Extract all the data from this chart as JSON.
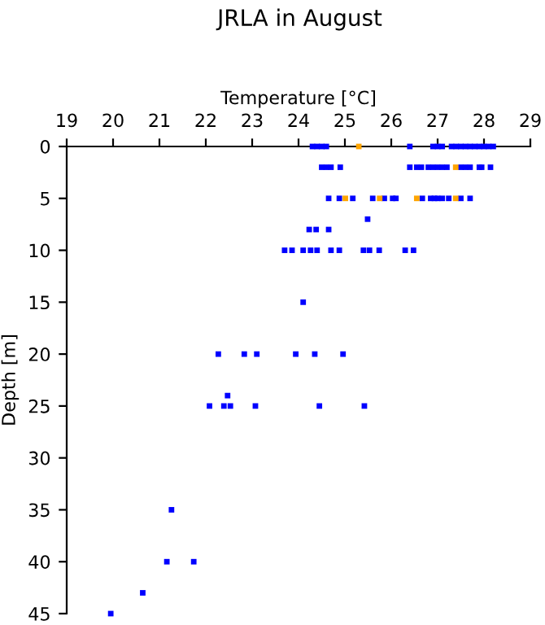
{
  "chart_data": {
    "type": "scatter",
    "title": "JRLA in August",
    "xlabel": "Temperature [°C]",
    "ylabel": "Depth [m]",
    "xlim": [
      19,
      29
    ],
    "xticks": [
      19,
      20,
      21,
      22,
      23,
      24,
      25,
      26,
      27,
      28,
      29
    ],
    "ylim": [
      45,
      0
    ],
    "yticks": [
      0,
      5,
      10,
      15,
      20,
      25,
      30,
      35,
      40,
      45
    ],
    "grid": false,
    "marker": "square",
    "series": [
      {
        "color": "#0000ff",
        "x": [
          24.3,
          24.4,
          24.5,
          24.6,
          26.4,
          26.9,
          27.0,
          27.1,
          27.3,
          27.4,
          27.5,
          27.6,
          27.7,
          27.8,
          27.9,
          28.0,
          28.1,
          28.2,
          24.5,
          24.6,
          24.7,
          24.9,
          26.4,
          26.55,
          26.65,
          26.8,
          26.9,
          27.0,
          27.1,
          27.2,
          27.5,
          27.6,
          27.7,
          27.9,
          27.95,
          28.14,
          24.65,
          24.88,
          25.17,
          25.6,
          25.85,
          26.03,
          26.1,
          26.67,
          26.85,
          26.93,
          27.0,
          27.1,
          27.24,
          27.5,
          27.7,
          25.49,
          24.23,
          24.38,
          24.65,
          23.7,
          23.86,
          24.1,
          24.26,
          24.4,
          24.7,
          24.88,
          25.4,
          25.53,
          25.74,
          26.3,
          26.48,
          24.1,
          22.27,
          22.83,
          23.1,
          23.94,
          24.35,
          24.96,
          22.47,
          22.08,
          22.39,
          22.53,
          23.07,
          24.45,
          25.42,
          21.26,
          21.16,
          21.74,
          20.64,
          19.95
        ],
        "values": [
          0,
          0,
          0,
          0,
          0,
          0,
          0,
          0,
          0,
          0,
          0,
          0,
          0,
          0,
          0,
          0,
          0,
          0,
          2,
          2,
          2,
          2,
          2,
          2,
          2,
          2,
          2,
          2,
          2,
          2,
          2,
          2,
          2,
          2,
          2,
          2,
          5,
          5,
          5,
          5,
          5,
          5,
          5,
          5,
          5,
          5,
          5,
          5,
          5,
          5,
          5,
          7,
          8,
          8,
          8,
          10,
          10,
          10,
          10,
          10,
          10,
          10,
          10,
          10,
          10,
          10,
          10,
          15,
          20,
          20,
          20,
          20,
          20,
          20,
          24,
          25,
          25,
          25,
          25,
          25,
          25,
          35,
          40,
          40,
          43,
          45
        ]
      },
      {
        "color": "#ffa500",
        "x": [
          25.3,
          27.39,
          25.01,
          25.75,
          26.55,
          27.39
        ],
        "values": [
          0,
          2,
          5,
          5,
          5,
          5
        ]
      }
    ]
  }
}
